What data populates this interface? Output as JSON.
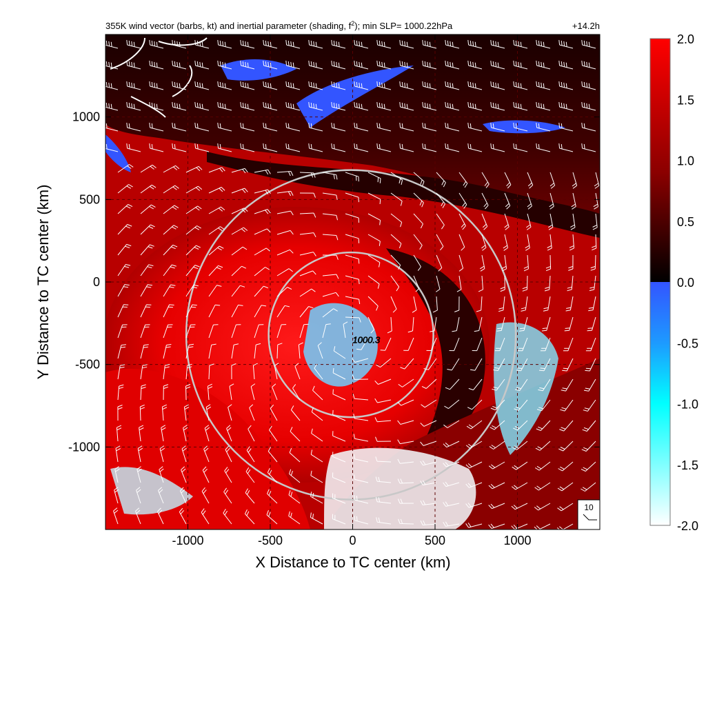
{
  "chart_data": {
    "type": "heatmap",
    "title": "355K wind vector (barbs, kt) and inertial parameter (shading, f²); min SLP= 1000.22hPa",
    "title_main": "355K wind vector (barbs, kt) and inertial parameter (shading, f",
    "title_sup": "2",
    "title_tail": "); min SLP= 1000.22hPa",
    "time_label": "+14.2h",
    "xlabel": "X Distance to TC center (km)",
    "ylabel": "Y Distance to TC center (km)",
    "xlim": [
      -1500,
      1500
    ],
    "ylim": [
      -1500,
      1500
    ],
    "xticks": [
      -1000,
      -500,
      0,
      500,
      1000
    ],
    "xtick_labels": [
      "-1000",
      "-500",
      "0",
      "500",
      "1000"
    ],
    "yticks": [
      1000,
      500,
      0,
      -500,
      -1000
    ],
    "ytick_labels": [
      "1000",
      "500",
      "0",
      "-500",
      "-1000"
    ],
    "grid": "dashed",
    "colorbar": {
      "min": -2.0,
      "max": 2.0,
      "ticks": [
        2.0,
        1.5,
        1.0,
        0.5,
        0.0,
        -0.5,
        -1.0,
        -1.5,
        -2.0
      ],
      "tick_labels": [
        "2.0",
        "1.5",
        "1.0",
        "0.5",
        "0.0",
        "-0.5",
        "-1.0",
        "-1.5",
        "-2.0"
      ],
      "colors": {
        "max": "#ff0000",
        "mid_high": "#8b0000",
        "zero": "#000000",
        "zero_neg": "#3355ff",
        "neg_mid": "#00ffff",
        "min": "#ffffff"
      }
    },
    "range_rings": {
      "center": [
        -10,
        -320
      ],
      "radii": [
        500,
        1000
      ],
      "color": "#c8c8c8"
    },
    "slp_label": {
      "text": "1000.3",
      "x": 0,
      "y": -370
    },
    "barb_legend": {
      "label": "10",
      "units": "kt"
    }
  }
}
